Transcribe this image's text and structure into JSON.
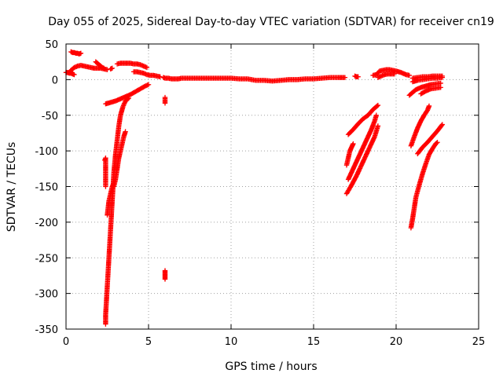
{
  "chart_data": {
    "type": "scatter",
    "title": "Day 055 of 2025, Sidereal Day-to-day VTEC variation (SDTVAR) for receiver cn19",
    "xlabel": "GPS time / hours",
    "ylabel": "SDTVAR / TECUs",
    "xlim": [
      0,
      25
    ],
    "ylim": [
      -350,
      50
    ],
    "xticks": [
      0,
      5,
      10,
      15,
      20,
      25
    ],
    "yticks": [
      50,
      0,
      -50,
      -100,
      -150,
      -200,
      -250,
      -300,
      -350
    ],
    "xtick_labels": [
      "0",
      "5",
      "10",
      "15",
      "20",
      "25"
    ],
    "ytick_labels": [
      "50",
      "0",
      "-50",
      "-100",
      "-150",
      "-200",
      "-250",
      "-300",
      "-350"
    ],
    "grid": true,
    "marker": "+",
    "color": "#ff0000",
    "series": [
      {
        "name": "s1",
        "points": [
          [
            0.2,
            10
          ],
          [
            0.3,
            13
          ],
          [
            0.4,
            15
          ],
          [
            0.5,
            17
          ],
          [
            0.7,
            19
          ],
          [
            0.9,
            20
          ],
          [
            1.1,
            19
          ],
          [
            1.3,
            18
          ],
          [
            1.5,
            17
          ],
          [
            1.7,
            16
          ],
          [
            1.9,
            16
          ],
          [
            2.1,
            16
          ],
          [
            2.3,
            15
          ],
          [
            2.5,
            14
          ]
        ]
      },
      {
        "name": "s2",
        "points": [
          [
            0.3,
            39
          ],
          [
            0.4,
            38
          ],
          [
            0.5,
            38
          ],
          [
            0.6,
            37
          ],
          [
            0.7,
            37
          ],
          [
            0.8,
            36
          ],
          [
            0.9,
            37
          ]
        ]
      },
      {
        "name": "s3",
        "points": [
          [
            0,
            10
          ],
          [
            0.1,
            10
          ],
          [
            0.2,
            9
          ],
          [
            0.3,
            9
          ],
          [
            0.4,
            8
          ],
          [
            0.5,
            7
          ]
        ]
      },
      {
        "name": "s4",
        "points": [
          [
            1.8,
            25
          ],
          [
            1.9,
            23
          ],
          [
            2.0,
            21
          ],
          [
            2.1,
            19
          ],
          [
            2.2,
            17
          ],
          [
            2.3,
            16
          ]
        ]
      },
      {
        "name": "s5",
        "points": [
          [
            2.7,
            15
          ],
          [
            2.8,
            16
          ]
        ]
      },
      {
        "name": "s6",
        "points": [
          [
            3.1,
            22
          ],
          [
            3.3,
            23
          ],
          [
            3.5,
            23
          ],
          [
            3.7,
            23
          ],
          [
            3.9,
            23
          ],
          [
            4.1,
            22
          ],
          [
            4.3,
            22
          ],
          [
            4.5,
            21
          ],
          [
            4.7,
            19
          ],
          [
            4.9,
            17
          ]
        ]
      },
      {
        "name": "s7",
        "points": [
          [
            4.1,
            11
          ],
          [
            4.3,
            11
          ],
          [
            4.5,
            10
          ],
          [
            4.7,
            9
          ],
          [
            4.9,
            7
          ],
          [
            5.1,
            6
          ],
          [
            5.3,
            6
          ],
          [
            5.5,
            5
          ],
          [
            5.7,
            4
          ]
        ]
      },
      {
        "name": "s8",
        "points": [
          [
            5.9,
            3
          ],
          [
            6.0,
            2
          ],
          [
            6.2,
            2
          ],
          [
            6.4,
            1
          ],
          [
            6.6,
            1
          ],
          [
            6.8,
            1
          ],
          [
            7.0,
            2
          ],
          [
            7.5,
            2
          ],
          [
            8.0,
            2
          ],
          [
            8.5,
            2
          ],
          [
            9.0,
            2
          ],
          [
            9.5,
            2
          ],
          [
            10.0,
            2
          ],
          [
            10.5,
            1
          ],
          [
            11.0,
            1
          ],
          [
            11.5,
            -1
          ],
          [
            12.0,
            -1
          ],
          [
            12.5,
            -2
          ],
          [
            13.0,
            -1
          ],
          [
            13.5,
            0
          ],
          [
            14.0,
            0
          ],
          [
            14.5,
            1
          ],
          [
            15.0,
            1
          ],
          [
            15.5,
            2
          ],
          [
            16.0,
            3
          ],
          [
            16.5,
            3
          ],
          [
            16.9,
            3
          ]
        ]
      },
      {
        "name": "s9",
        "points": [
          [
            6.0,
            -25
          ],
          [
            6.0,
            -33
          ]
        ]
      },
      {
        "name": "s10",
        "points": [
          [
            6.0,
            -268
          ],
          [
            6.0,
            -272
          ],
          [
            6.0,
            -276
          ],
          [
            6.0,
            -280
          ]
        ]
      },
      {
        "name": "s11",
        "points": [
          [
            2.4,
            -34
          ],
          [
            2.7,
            -32
          ],
          [
            3.0,
            -30
          ],
          [
            3.3,
            -27
          ],
          [
            3.6,
            -24
          ],
          [
            3.9,
            -21
          ],
          [
            4.2,
            -17
          ],
          [
            4.5,
            -13
          ],
          [
            4.8,
            -9
          ],
          [
            5.0,
            -7
          ]
        ]
      },
      {
        "name": "s12",
        "points": [
          [
            2.4,
            -343
          ],
          [
            2.4,
            -330
          ],
          [
            2.45,
            -310
          ],
          [
            2.5,
            -290
          ],
          [
            2.55,
            -270
          ],
          [
            2.6,
            -250
          ],
          [
            2.65,
            -230
          ],
          [
            2.7,
            -210
          ],
          [
            2.75,
            -190
          ],
          [
            2.8,
            -170
          ],
          [
            2.85,
            -150
          ],
          [
            2.9,
            -130
          ],
          [
            3.0,
            -105
          ],
          [
            3.1,
            -85
          ],
          [
            3.2,
            -65
          ],
          [
            3.3,
            -50
          ],
          [
            3.45,
            -38
          ],
          [
            3.6,
            -30
          ],
          [
            3.8,
            -26
          ]
        ]
      },
      {
        "name": "s13",
        "points": [
          [
            2.35,
            -113
          ],
          [
            2.4,
            -110
          ],
          [
            2.4,
            -120
          ],
          [
            2.4,
            -130
          ],
          [
            2.4,
            -140
          ],
          [
            2.4,
            -150
          ]
        ]
      },
      {
        "name": "s14",
        "points": [
          [
            2.5,
            -190
          ],
          [
            2.6,
            -170
          ],
          [
            2.7,
            -160
          ],
          [
            2.8,
            -150
          ],
          [
            2.9,
            -145
          ]
        ]
      },
      {
        "name": "s15",
        "points": [
          [
            2.9,
            -150
          ],
          [
            3.0,
            -140
          ],
          [
            3.1,
            -125
          ],
          [
            3.2,
            -110
          ],
          [
            3.3,
            -100
          ],
          [
            3.4,
            -90
          ],
          [
            3.5,
            -80
          ],
          [
            3.6,
            -73
          ]
        ]
      },
      {
        "name": "s16",
        "points": [
          [
            17.0,
            -160
          ],
          [
            17.3,
            -148
          ],
          [
            17.6,
            -135
          ],
          [
            17.9,
            -120
          ],
          [
            18.2,
            -105
          ],
          [
            18.5,
            -90
          ],
          [
            18.7,
            -80
          ],
          [
            18.9,
            -65
          ]
        ]
      },
      {
        "name": "s17",
        "points": [
          [
            17.1,
            -140
          ],
          [
            17.3,
            -130
          ],
          [
            17.5,
            -120
          ],
          [
            17.7,
            -110
          ],
          [
            17.9,
            -100
          ],
          [
            18.1,
            -90
          ],
          [
            18.3,
            -80
          ],
          [
            18.5,
            -70
          ],
          [
            18.7,
            -58
          ],
          [
            18.8,
            -50
          ]
        ]
      },
      {
        "name": "s18",
        "points": [
          [
            17.0,
            -120
          ],
          [
            17.1,
            -110
          ],
          [
            17.2,
            -100
          ],
          [
            17.3,
            -95
          ],
          [
            17.4,
            -90
          ]
        ]
      },
      {
        "name": "s19",
        "points": [
          [
            17.1,
            -77
          ],
          [
            17.4,
            -70
          ],
          [
            17.7,
            -62
          ],
          [
            18.0,
            -55
          ],
          [
            18.3,
            -50
          ],
          [
            18.6,
            -42
          ],
          [
            18.9,
            -36
          ]
        ]
      },
      {
        "name": "s20",
        "points": [
          [
            17.5,
            5
          ],
          [
            17.6,
            4
          ],
          [
            17.7,
            4
          ]
        ]
      },
      {
        "name": "s21",
        "points": [
          [
            18.6,
            6
          ],
          [
            18.8,
            7
          ],
          [
            19.0,
            12
          ],
          [
            19.2,
            13
          ],
          [
            19.4,
            14
          ],
          [
            19.6,
            14
          ],
          [
            19.8,
            13
          ],
          [
            20.0,
            12
          ],
          [
            20.3,
            10
          ],
          [
            20.6,
            7
          ],
          [
            20.8,
            6
          ]
        ]
      },
      {
        "name": "s22",
        "points": [
          [
            18.9,
            3
          ],
          [
            19.1,
            5
          ],
          [
            19.3,
            7
          ],
          [
            19.5,
            8
          ],
          [
            19.7,
            8
          ],
          [
            19.9,
            8
          ]
        ]
      },
      {
        "name": "s23",
        "points": [
          [
            21.0,
            2
          ],
          [
            21.3,
            3
          ],
          [
            21.6,
            4
          ],
          [
            21.9,
            4
          ],
          [
            22.2,
            5
          ],
          [
            22.5,
            5
          ],
          [
            22.8,
            5
          ]
        ]
      },
      {
        "name": "s24",
        "points": [
          [
            21.0,
            -3
          ],
          [
            21.3,
            -1
          ],
          [
            21.6,
            0
          ],
          [
            21.9,
            1
          ],
          [
            22.2,
            2
          ],
          [
            22.5,
            2
          ],
          [
            22.8,
            3
          ]
        ]
      },
      {
        "name": "s25",
        "points": [
          [
            20.8,
            -22
          ],
          [
            21.0,
            -18
          ],
          [
            21.2,
            -14
          ],
          [
            21.5,
            -11
          ],
          [
            21.8,
            -9
          ],
          [
            22.1,
            -7
          ],
          [
            22.4,
            -6
          ],
          [
            22.7,
            -5
          ]
        ]
      },
      {
        "name": "s26",
        "points": [
          [
            21.5,
            -20
          ],
          [
            21.8,
            -16
          ],
          [
            22.1,
            -13
          ],
          [
            22.4,
            -12
          ],
          [
            22.7,
            -11
          ]
        ]
      },
      {
        "name": "s27",
        "points": [
          [
            20.9,
            -93
          ],
          [
            21.1,
            -80
          ],
          [
            21.3,
            -68
          ],
          [
            21.5,
            -58
          ],
          [
            21.7,
            -50
          ],
          [
            21.9,
            -43
          ],
          [
            22.0,
            -37
          ]
        ]
      },
      {
        "name": "s28",
        "points": [
          [
            20.9,
            -208
          ],
          [
            21.0,
            -195
          ],
          [
            21.1,
            -180
          ],
          [
            21.2,
            -165
          ],
          [
            21.4,
            -148
          ],
          [
            21.6,
            -132
          ],
          [
            21.8,
            -118
          ],
          [
            22.0,
            -105
          ],
          [
            22.2,
            -97
          ],
          [
            22.4,
            -90
          ],
          [
            22.5,
            -88
          ]
        ]
      },
      {
        "name": "s29",
        "points": [
          [
            21.3,
            -104
          ],
          [
            21.6,
            -95
          ],
          [
            21.9,
            -88
          ],
          [
            22.2,
            -80
          ],
          [
            22.5,
            -72
          ],
          [
            22.8,
            -63
          ]
        ]
      }
    ]
  }
}
